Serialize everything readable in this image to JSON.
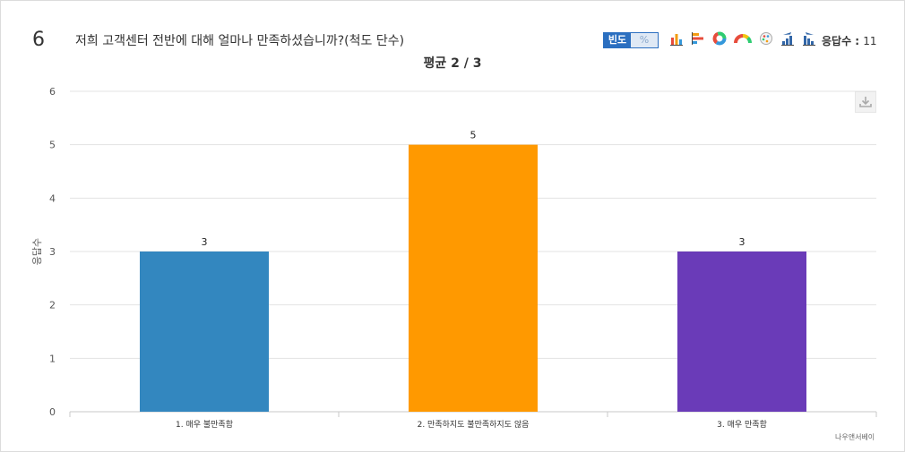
{
  "question": {
    "number": "6",
    "text": "저희 고객센터 전반에 대해 얼마나 만족하셨습니까?(척도 단수)"
  },
  "toolbar": {
    "freq_label": "빈도",
    "pct_label": "%",
    "mode_selected": "빈도",
    "response_label": "응답수 :",
    "response_count": "11",
    "icons": [
      "bar-chart-icon",
      "horizontal-bar-icon",
      "donut-chart-icon",
      "half-donut-icon",
      "palette-icon",
      "sort-asc-icon",
      "sort-desc-icon"
    ]
  },
  "average_label": "평균 2 / 3",
  "credit": "나우앤서베이",
  "chart_data": {
    "type": "bar",
    "categories": [
      "1. 매우 불만족함",
      "2. 만족하지도 불만족하지도 않음",
      "3. 매우 만족함"
    ],
    "values": [
      3,
      5,
      3
    ],
    "value_labels": [
      "3",
      "5",
      "3"
    ],
    "colors": [
      "#3387bf",
      "#ff9900",
      "#6a3bb8"
    ],
    "ylabel": "응답수",
    "ylim": [
      0,
      6
    ],
    "yticks": [
      "0",
      "1",
      "2",
      "3",
      "4",
      "5",
      "6"
    ],
    "grid": true
  }
}
